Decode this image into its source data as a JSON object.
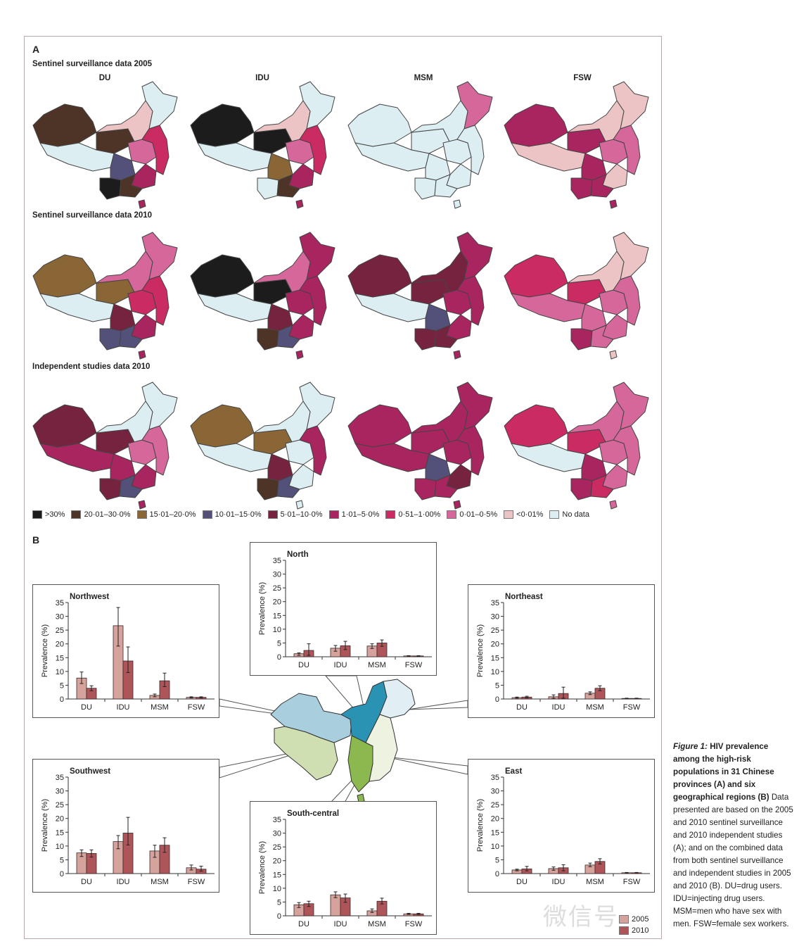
{
  "panel_a": {
    "letter": "A",
    "rows": [
      {
        "title": "Sentinel surveillance data 2005"
      },
      {
        "title": "Sentinel surveillance data 2010"
      },
      {
        "title": "Independent studies data 2010"
      }
    ],
    "columns": [
      "DU",
      "IDU",
      "MSM",
      "FSW"
    ],
    "maps": [
      [
        {
          "nw": "c1",
          "tibet": "c9",
          "ne": "c9",
          "north": "c8",
          "center": "c7",
          "sw": "c3",
          "yunnan": "c0",
          "south": "c5",
          "east": "c6",
          "guangxi": "c1",
          "hainan": "c5"
        },
        {
          "nw": "c0",
          "tibet": "c9",
          "ne": "c9",
          "north": "c8",
          "center": "c7",
          "sw": "c2",
          "yunnan": "c9",
          "south": "c5",
          "east": "c6",
          "guangxi": "c1",
          "hainan": "c5"
        },
        {
          "nw": "c9",
          "tibet": "c9",
          "ne": "c7",
          "north": "c9",
          "center": "c9",
          "sw": "c9",
          "yunnan": "c9",
          "south": "c9",
          "east": "c9",
          "guangxi": "c9",
          "hainan": "c9"
        },
        {
          "nw": "c5",
          "tibet": "c8",
          "ne": "c8",
          "north": "c8",
          "center": "c7",
          "sw": "c5",
          "yunnan": "c5",
          "south": "c8",
          "east": "c7",
          "guangxi": "c5",
          "hainan": "c5"
        }
      ],
      [
        {
          "nw": "c2",
          "tibet": "c9",
          "ne": "c7",
          "north": "c7",
          "center": "c6",
          "sw": "c4",
          "yunnan": "c3",
          "south": "c5",
          "east": "c6",
          "guangxi": "c3",
          "hainan": "c5"
        },
        {
          "nw": "c0",
          "tibet": "c9",
          "ne": "c5",
          "north": "c7",
          "center": "c5",
          "sw": "c4",
          "yunnan": "c1",
          "south": "c5",
          "east": "c5",
          "guangxi": "c3",
          "hainan": "c5"
        },
        {
          "nw": "c4",
          "tibet": "c9",
          "ne": "c5",
          "north": "c4",
          "center": "c5",
          "sw": "c3",
          "yunnan": "c4",
          "south": "c5",
          "east": "c5",
          "guangxi": "c4",
          "hainan": "c5"
        },
        {
          "nw": "c6",
          "tibet": "c7",
          "ne": "c8",
          "north": "c8",
          "center": "c7",
          "sw": "c7",
          "yunnan": "c5",
          "south": "c7",
          "east": "c7",
          "guangxi": "c7",
          "hainan": "c8"
        }
      ],
      [
        {
          "nw": "c4",
          "tibet": "c5",
          "ne": "c9",
          "north": "c9",
          "center": "c7",
          "sw": "c5",
          "yunnan": "c4",
          "south": "c5",
          "east": "c7",
          "guangxi": "c3",
          "hainan": "c5"
        },
        {
          "nw": "c2",
          "tibet": "c9",
          "ne": "c9",
          "north": "c9",
          "center": "c9",
          "sw": "c4",
          "yunnan": "c1",
          "south": "c9",
          "east": "c5",
          "guangxi": "c3",
          "hainan": "c9"
        },
        {
          "nw": "c5",
          "tibet": "c5",
          "ne": "c5",
          "north": "c5",
          "center": "c5",
          "sw": "c3",
          "yunnan": "c5",
          "south": "c4",
          "east": "c5",
          "guangxi": "c5",
          "hainan": "c5"
        },
        {
          "nw": "c6",
          "tibet": "c9",
          "ne": "c7",
          "north": "c7",
          "center": "c7",
          "sw": "c5",
          "yunnan": "c5",
          "south": "c7",
          "east": "c7",
          "guangxi": "c6",
          "hainan": "c7"
        }
      ]
    ],
    "legend": [
      {
        "label": ">30%",
        "color": "#1c1c1c"
      },
      {
        "label": "20·01–30·0%",
        "color": "#4e3426"
      },
      {
        "label": "15·01–20·0%",
        "color": "#8a6637"
      },
      {
        "label": "10·01–15·0%",
        "color": "#53507a"
      },
      {
        "label": "5·01–10·0%",
        "color": "#76233f"
      },
      {
        "label": "1·01–5·0%",
        "color": "#a8255f"
      },
      {
        "label": "0·51–1·00%",
        "color": "#c92b62"
      },
      {
        "label": "0·01–0·5%",
        "color": "#d5679a"
      },
      {
        "label": "<0·01%",
        "color": "#ecc4c5"
      },
      {
        "label": "No data",
        "color": "#dceef2"
      }
    ]
  },
  "panel_b": {
    "letter": "B",
    "region_colors": {
      "Northwest": "#a9cfdf",
      "North": "#2a93b4",
      "Northeast": "#e1eff4",
      "Southwest": "#cfdfb2",
      "South-central": "#8bb84f",
      "East": "#edf3e0"
    },
    "bar_legend": [
      {
        "label": "2005",
        "color": "#d6a39c"
      },
      {
        "label": "2010",
        "color": "#ae5559"
      }
    ]
  },
  "chart_data": [
    {
      "type": "bar",
      "title": "Northwest",
      "ylabel": "Prevalence (%)",
      "ylim": [
        0,
        35
      ],
      "yticks": [
        0,
        5,
        10,
        15,
        20,
        25,
        30,
        35
      ],
      "categories": [
        "DU",
        "IDU",
        "MSM",
        "FSW"
      ],
      "series": [
        {
          "name": "2005",
          "values": [
            7.6,
            26.6,
            1.3,
            0.6
          ],
          "err": [
            [
              5.6,
              9.8
            ],
            [
              19.2,
              33.2
            ],
            [
              0.8,
              1.8
            ],
            [
              0.4,
              0.8
            ]
          ]
        },
        {
          "name": "2010",
          "values": [
            3.9,
            13.8,
            6.6,
            0.6
          ],
          "err": [
            [
              3.0,
              4.8
            ],
            [
              9.6,
              18.9
            ],
            [
              4.5,
              9.4
            ],
            [
              0.4,
              0.8
            ]
          ]
        }
      ]
    },
    {
      "type": "bar",
      "title": "North",
      "ylabel": "Prevalence (%)",
      "ylim": [
        0,
        35
      ],
      "yticks": [
        0,
        5,
        10,
        15,
        20,
        25,
        30,
        35
      ],
      "categories": [
        "DU",
        "IDU",
        "MSM",
        "FSW"
      ],
      "series": [
        {
          "name": "2005",
          "values": [
            1.1,
            3.1,
            3.9,
            0.3
          ],
          "err": [
            [
              0.5,
              1.4
            ],
            [
              2.0,
              4.1
            ],
            [
              3.0,
              4.7
            ],
            [
              0.2,
              0.4
            ]
          ]
        },
        {
          "name": "2010",
          "values": [
            2.3,
            4.0,
            5.0,
            0.3
          ],
          "err": [
            [
              0.5,
              4.7
            ],
            [
              2.6,
              5.6
            ],
            [
              3.8,
              6.1
            ],
            [
              0.2,
              0.4
            ]
          ]
        }
      ]
    },
    {
      "type": "bar",
      "title": "Northeast",
      "ylabel": "Prevalence (%)",
      "ylim": [
        0,
        35
      ],
      "yticks": [
        0,
        5,
        10,
        15,
        20,
        25,
        30,
        35
      ],
      "categories": [
        "DU",
        "IDU",
        "MSM",
        "FSW"
      ],
      "series": [
        {
          "name": "2005",
          "values": [
            0.5,
            0.8,
            2.1,
            0.2
          ],
          "err": [
            [
              0.3,
              0.7
            ],
            [
              0.2,
              1.5
            ],
            [
              1.6,
              2.6
            ],
            [
              0.1,
              0.3
            ]
          ]
        },
        {
          "name": "2010",
          "values": [
            0.7,
            2.0,
            3.9,
            0.2
          ],
          "err": [
            [
              0.4,
              1.0
            ],
            [
              0.3,
              4.3
            ],
            [
              3.0,
              4.8
            ],
            [
              0.1,
              0.3
            ]
          ]
        }
      ]
    },
    {
      "type": "bar",
      "title": "Southwest",
      "ylabel": "Prevalence (%)",
      "ylim": [
        0,
        35
      ],
      "yticks": [
        0,
        5,
        10,
        15,
        20,
        25,
        30,
        35
      ],
      "categories": [
        "DU",
        "IDU",
        "MSM",
        "FSW"
      ],
      "series": [
        {
          "name": "2005",
          "values": [
            7.5,
            11.6,
            8.2,
            2.1
          ],
          "err": [
            [
              6.2,
              8.6
            ],
            [
              9.0,
              13.8
            ],
            [
              5.9,
              10.3
            ],
            [
              1.3,
              3.1
            ]
          ]
        },
        {
          "name": "2010",
          "values": [
            7.3,
            14.7,
            10.3,
            1.6
          ],
          "err": [
            [
              6.0,
              8.6
            ],
            [
              10.4,
              20.4
            ],
            [
              7.7,
              13.0
            ],
            [
              0.9,
              2.7
            ]
          ]
        }
      ]
    },
    {
      "type": "bar",
      "title": "South-central",
      "ylabel": "Prevalence (%)",
      "ylim": [
        0,
        35
      ],
      "yticks": [
        0,
        5,
        10,
        15,
        20,
        25,
        30,
        35
      ],
      "categories": [
        "DU",
        "IDU",
        "MSM",
        "FSW"
      ],
      "series": [
        {
          "name": "2005",
          "values": [
            4.0,
            7.6,
            1.8,
            0.7
          ],
          "err": [
            [
              3.0,
              4.8
            ],
            [
              6.6,
              8.7
            ],
            [
              1.2,
              2.5
            ],
            [
              0.5,
              0.9
            ]
          ]
        },
        {
          "name": "2010",
          "values": [
            4.4,
            6.5,
            5.3,
            0.7
          ],
          "err": [
            [
              3.4,
              5.3
            ],
            [
              4.9,
              7.9
            ],
            [
              4.3,
              6.4
            ],
            [
              0.5,
              0.9
            ]
          ]
        }
      ]
    },
    {
      "type": "bar",
      "title": "East",
      "ylabel": "Prevalence (%)",
      "ylim": [
        0,
        35
      ],
      "yticks": [
        0,
        5,
        10,
        15,
        20,
        25,
        30,
        35
      ],
      "categories": [
        "DU",
        "IDU",
        "MSM",
        "FSW"
      ],
      "series": [
        {
          "name": "2005",
          "values": [
            1.3,
            1.8,
            3.1,
            0.3
          ],
          "err": [
            [
              1.0,
              1.6
            ],
            [
              1.2,
              2.4
            ],
            [
              2.5,
              3.8
            ],
            [
              0.2,
              0.4
            ]
          ]
        },
        {
          "name": "2010",
          "values": [
            1.7,
            2.1,
            4.4,
            0.3
          ],
          "err": [
            [
              1.0,
              2.6
            ],
            [
              1.0,
              3.2
            ],
            [
              3.5,
              5.4
            ],
            [
              0.2,
              0.4
            ]
          ]
        }
      ]
    }
  ],
  "caption": {
    "figure_label": "Figure 1:",
    "title": " HIV prevalence among the high-risk populations in 31 Chinese provinces (A) and six geographical regions (B)",
    "body": "Data presented are based on the 2005 and 2010 sentinel surveillance and 2010 independent studies (A); and on the combined data from both sentinel surveillance and independent studies in 2005 and 2010 (B). DU=drug users. IDU=injecting drug users. MSM=men who have sex with men. FSW=female sex workers."
  },
  "watermark": "微信号"
}
